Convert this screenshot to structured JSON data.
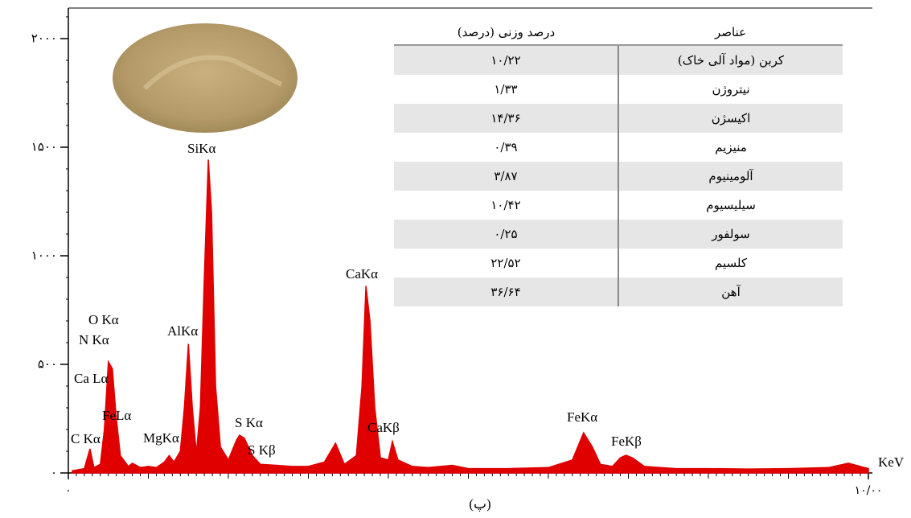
{
  "chart_data": {
    "type": "spectrum",
    "color": "#e00000",
    "x_label": "KeV",
    "caption": "(پ)",
    "xlim": [
      0,
      10
    ],
    "ylim": [
      0,
      2000
    ],
    "xticks": [
      {
        "value": 0,
        "label": "۰"
      },
      {
        "value": 10,
        "label": "۱۰/۰۰"
      }
    ],
    "yticks": [
      {
        "value": 0,
        "label": "۰"
      },
      {
        "value": 500,
        "label": "۵۰۰"
      },
      {
        "value": 1000,
        "label": "۱۰۰۰"
      },
      {
        "value": 1500,
        "label": "۱۵۰۰"
      },
      {
        "value": 2000,
        "label": "۲۰۰۰"
      }
    ],
    "x": [
      0.05,
      0.2,
      0.27,
      0.32,
      0.4,
      0.45,
      0.5,
      0.55,
      0.6,
      0.65,
      0.75,
      0.8,
      0.9,
      1.0,
      1.1,
      1.2,
      1.26,
      1.32,
      1.4,
      1.45,
      1.5,
      1.55,
      1.6,
      1.65,
      1.7,
      1.75,
      1.79,
      1.84,
      1.9,
      2.0,
      2.1,
      2.14,
      2.2,
      2.3,
      2.4,
      2.6,
      2.8,
      3.0,
      3.2,
      3.34,
      3.45,
      3.6,
      3.67,
      3.72,
      3.77,
      3.83,
      3.9,
      4.0,
      4.05,
      4.12,
      4.3,
      4.5,
      4.8,
      5.0,
      5.5,
      6.0,
      6.3,
      6.44,
      6.55,
      6.65,
      6.8,
      6.9,
      6.97,
      7.05,
      7.2,
      7.6,
      8.0,
      8.5,
      9.0,
      9.5,
      9.75,
      9.9,
      10.0
    ],
    "values": [
      10,
      20,
      111,
      25,
      40,
      200,
      512,
      480,
      250,
      80,
      30,
      45,
      25,
      30,
      25,
      50,
      80,
      50,
      100,
      300,
      594,
      300,
      90,
      300,
      900,
      1443,
      1200,
      400,
      120,
      60,
      150,
      174,
      160,
      80,
      40,
      35,
      30,
      30,
      50,
      137,
      40,
      80,
      400,
      861,
      700,
      300,
      70,
      60,
      145,
      60,
      30,
      25,
      35,
      20,
      20,
      25,
      60,
      185,
      120,
      40,
      30,
      70,
      82,
      70,
      30,
      20,
      20,
      18,
      20,
      25,
      45,
      30,
      20
    ],
    "annotations": [
      "C Kα",
      "Ca Lα",
      "N Kα",
      "O Kα",
      "FeLα",
      "MgKα",
      "AlKα",
      "SiKα",
      "S Kα",
      "S Kβ",
      "CaKα",
      "CaKβ",
      "FeKα",
      "FeKβ"
    ]
  },
  "table": {
    "columns": [
      "عناصر",
      "درصد وزنی (درصد)"
    ],
    "rows": [
      [
        "کربن (مواد آلی خاک)",
        "۱۰/۲۲"
      ],
      [
        "نیتروژن",
        "۱/۳۳"
      ],
      [
        "اکیسژن",
        "۱۴/۳۶"
      ],
      [
        "منیزیم",
        "۰/۳۹"
      ],
      [
        "آلومینیوم",
        "۳/۸۷"
      ],
      [
        "سیلیسیوم",
        "۱۰/۴۲"
      ],
      [
        "سولفور",
        "۰/۲۵"
      ],
      [
        "کلسیم",
        "۲۲/۵۲"
      ],
      [
        "آهن",
        "۳۶/۶۴"
      ]
    ]
  }
}
